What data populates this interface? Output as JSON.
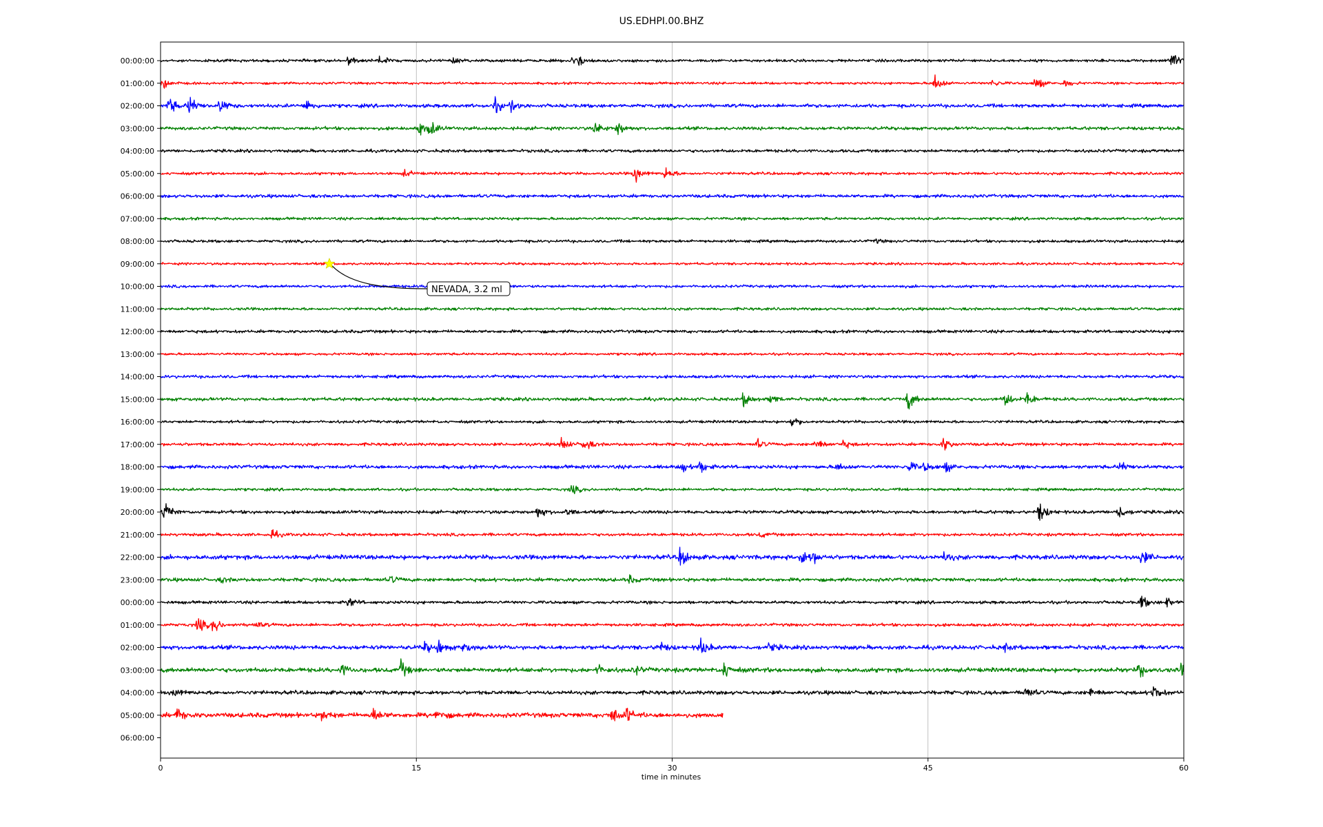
{
  "chart_data": {
    "type": "line",
    "title": "US.EDHPI.00.BHZ",
    "xlabel": "time in minutes",
    "ylabel": "",
    "xlim": [
      0,
      60
    ],
    "xticks": [
      "0",
      "15",
      "30",
      "45",
      "60"
    ],
    "xtick_values": [
      0,
      15,
      30,
      45,
      60
    ],
    "grid": "vertical lines at x ticks",
    "row_labels": [
      "00:00:00",
      "01:00:00",
      "02:00:00",
      "03:00:00",
      "04:00:00",
      "05:00:00",
      "06:00:00",
      "07:00:00",
      "08:00:00",
      "09:00:00",
      "10:00:00",
      "11:00:00",
      "12:00:00",
      "13:00:00",
      "14:00:00",
      "15:00:00",
      "16:00:00",
      "17:00:00",
      "18:00:00",
      "19:00:00",
      "20:00:00",
      "21:00:00",
      "22:00:00",
      "23:00:00",
      "00:00:00",
      "01:00:00",
      "02:00:00",
      "03:00:00",
      "04:00:00",
      "05:00:00",
      "06:00:00"
    ],
    "trace_colors": [
      "#000000",
      "#ff0000",
      "#0000ff",
      "#008000"
    ],
    "traces_end_minute": [
      60,
      60,
      60,
      60,
      60,
      60,
      60,
      60,
      60,
      60,
      60,
      60,
      60,
      60,
      60,
      60,
      60,
      60,
      60,
      60,
      60,
      60,
      60,
      60,
      60,
      60,
      60,
      60,
      60,
      33,
      0
    ],
    "noise_level": [
      1.0,
      0.9,
      1.3,
      1.2,
      1.1,
      1.0,
      1.2,
      1.0,
      1.0,
      0.9,
      1.0,
      1.0,
      1.1,
      0.9,
      1.1,
      1.2,
      1.0,
      1.1,
      1.3,
      1.0,
      1.2,
      1.1,
      1.6,
      1.3,
      1.1,
      1.1,
      1.5,
      1.6,
      1.4,
      1.7,
      0
    ],
    "bursts": [
      {
        "row": 0,
        "t": 11,
        "amp": 6
      },
      {
        "row": 0,
        "t": 12.8,
        "amp": 7
      },
      {
        "row": 0,
        "t": 17.2,
        "amp": 4
      },
      {
        "row": 0,
        "t": 24,
        "amp": 5
      },
      {
        "row": 0,
        "t": 24.5,
        "amp": 6
      },
      {
        "row": 0,
        "t": 59.2,
        "amp": 14
      },
      {
        "row": 1,
        "t": 0.1,
        "amp": 10
      },
      {
        "row": 1,
        "t": 45.4,
        "amp": 12
      },
      {
        "row": 1,
        "t": 48.8,
        "amp": 5
      },
      {
        "row": 1,
        "t": 51.3,
        "amp": 9
      },
      {
        "row": 1,
        "t": 53,
        "amp": 5
      },
      {
        "row": 2,
        "t": 0.5,
        "amp": 10
      },
      {
        "row": 2,
        "t": 1.7,
        "amp": 12
      },
      {
        "row": 2,
        "t": 3.5,
        "amp": 9
      },
      {
        "row": 2,
        "t": 8.5,
        "amp": 8
      },
      {
        "row": 2,
        "t": 19.6,
        "amp": 9
      },
      {
        "row": 2,
        "t": 20.6,
        "amp": 7
      },
      {
        "row": 3,
        "t": 15.2,
        "amp": 8
      },
      {
        "row": 3,
        "t": 15.8,
        "amp": 9
      },
      {
        "row": 3,
        "t": 25.5,
        "amp": 8
      },
      {
        "row": 3,
        "t": 26.8,
        "amp": 9
      },
      {
        "row": 5,
        "t": 14.3,
        "amp": 4
      },
      {
        "row": 5,
        "t": 27.8,
        "amp": 10
      },
      {
        "row": 5,
        "t": 29.6,
        "amp": 8
      },
      {
        "row": 8,
        "t": 41.8,
        "amp": 3
      },
      {
        "row": 15,
        "t": 34.2,
        "amp": 9
      },
      {
        "row": 15,
        "t": 35.8,
        "amp": 5
      },
      {
        "row": 15,
        "t": 43.8,
        "amp": 13
      },
      {
        "row": 15,
        "t": 49.5,
        "amp": 9
      },
      {
        "row": 15,
        "t": 50.8,
        "amp": 8
      },
      {
        "row": 16,
        "t": 37,
        "amp": 7
      },
      {
        "row": 17,
        "t": 23.5,
        "amp": 8
      },
      {
        "row": 17,
        "t": 24.8,
        "amp": 9
      },
      {
        "row": 17,
        "t": 35,
        "amp": 5
      },
      {
        "row": 17,
        "t": 38.4,
        "amp": 8
      },
      {
        "row": 17,
        "t": 40,
        "amp": 5
      },
      {
        "row": 17,
        "t": 45.9,
        "amp": 8
      },
      {
        "row": 18,
        "t": 30.6,
        "amp": 7
      },
      {
        "row": 18,
        "t": 31.6,
        "amp": 7
      },
      {
        "row": 18,
        "t": 39.7,
        "amp": 5
      },
      {
        "row": 18,
        "t": 43.9,
        "amp": 6
      },
      {
        "row": 18,
        "t": 44.8,
        "amp": 5
      },
      {
        "row": 18,
        "t": 46,
        "amp": 6
      },
      {
        "row": 18,
        "t": 56.3,
        "amp": 6
      },
      {
        "row": 19,
        "t": 24.1,
        "amp": 6
      },
      {
        "row": 20,
        "t": 0.2,
        "amp": 13
      },
      {
        "row": 20,
        "t": 22.1,
        "amp": 7
      },
      {
        "row": 20,
        "t": 23.8,
        "amp": 4
      },
      {
        "row": 20,
        "t": 51.5,
        "amp": 12
      },
      {
        "row": 20,
        "t": 56.1,
        "amp": 11
      },
      {
        "row": 21,
        "t": 6.5,
        "amp": 5
      },
      {
        "row": 21,
        "t": 35.2,
        "amp": 3
      },
      {
        "row": 22,
        "t": 30.5,
        "amp": 13
      },
      {
        "row": 22,
        "t": 37.5,
        "amp": 10
      },
      {
        "row": 22,
        "t": 38.2,
        "amp": 7
      },
      {
        "row": 22,
        "t": 46,
        "amp": 6
      },
      {
        "row": 22,
        "t": 57.5,
        "amp": 9
      },
      {
        "row": 23,
        "t": 3.6,
        "amp": 3
      },
      {
        "row": 23,
        "t": 13.5,
        "amp": 4
      },
      {
        "row": 23,
        "t": 27.5,
        "amp": 4
      },
      {
        "row": 24,
        "t": 11,
        "amp": 6
      },
      {
        "row": 24,
        "t": 57.5,
        "amp": 8
      },
      {
        "row": 24,
        "t": 59,
        "amp": 6
      },
      {
        "row": 25,
        "t": 2.2,
        "amp": 10
      },
      {
        "row": 25,
        "t": 3.1,
        "amp": 9
      },
      {
        "row": 25,
        "t": 5.5,
        "amp": 5
      },
      {
        "row": 26,
        "t": 15.5,
        "amp": 6
      },
      {
        "row": 26,
        "t": 16.3,
        "amp": 8
      },
      {
        "row": 26,
        "t": 17.7,
        "amp": 7
      },
      {
        "row": 26,
        "t": 29.2,
        "amp": 7
      },
      {
        "row": 26,
        "t": 31.6,
        "amp": 12
      },
      {
        "row": 26,
        "t": 35.7,
        "amp": 5
      },
      {
        "row": 26,
        "t": 49.5,
        "amp": 4
      },
      {
        "row": 27,
        "t": 10.6,
        "amp": 7
      },
      {
        "row": 27,
        "t": 14.1,
        "amp": 10
      },
      {
        "row": 27,
        "t": 25.6,
        "amp": 6
      },
      {
        "row": 27,
        "t": 27.8,
        "amp": 5
      },
      {
        "row": 27,
        "t": 33,
        "amp": 11
      },
      {
        "row": 27,
        "t": 57.4,
        "amp": 9
      },
      {
        "row": 27,
        "t": 59.8,
        "amp": 6
      },
      {
        "row": 28,
        "t": 0.8,
        "amp": 5
      },
      {
        "row": 28,
        "t": 50.7,
        "amp": 7
      },
      {
        "row": 28,
        "t": 54.5,
        "amp": 6
      },
      {
        "row": 28,
        "t": 58.2,
        "amp": 10
      },
      {
        "row": 29,
        "t": 1,
        "amp": 8
      },
      {
        "row": 29,
        "t": 9.5,
        "amp": 6
      },
      {
        "row": 29,
        "t": 12.5,
        "amp": 8
      },
      {
        "row": 29,
        "t": 16.2,
        "amp": 7
      },
      {
        "row": 29,
        "t": 26.5,
        "amp": 10
      },
      {
        "row": 29,
        "t": 27.3,
        "amp": 8
      }
    ],
    "event": {
      "row": 9,
      "t": 9.9,
      "marker": "star",
      "marker_color": "#ffff00",
      "label": "NEVADA, 3.2 ml"
    }
  }
}
